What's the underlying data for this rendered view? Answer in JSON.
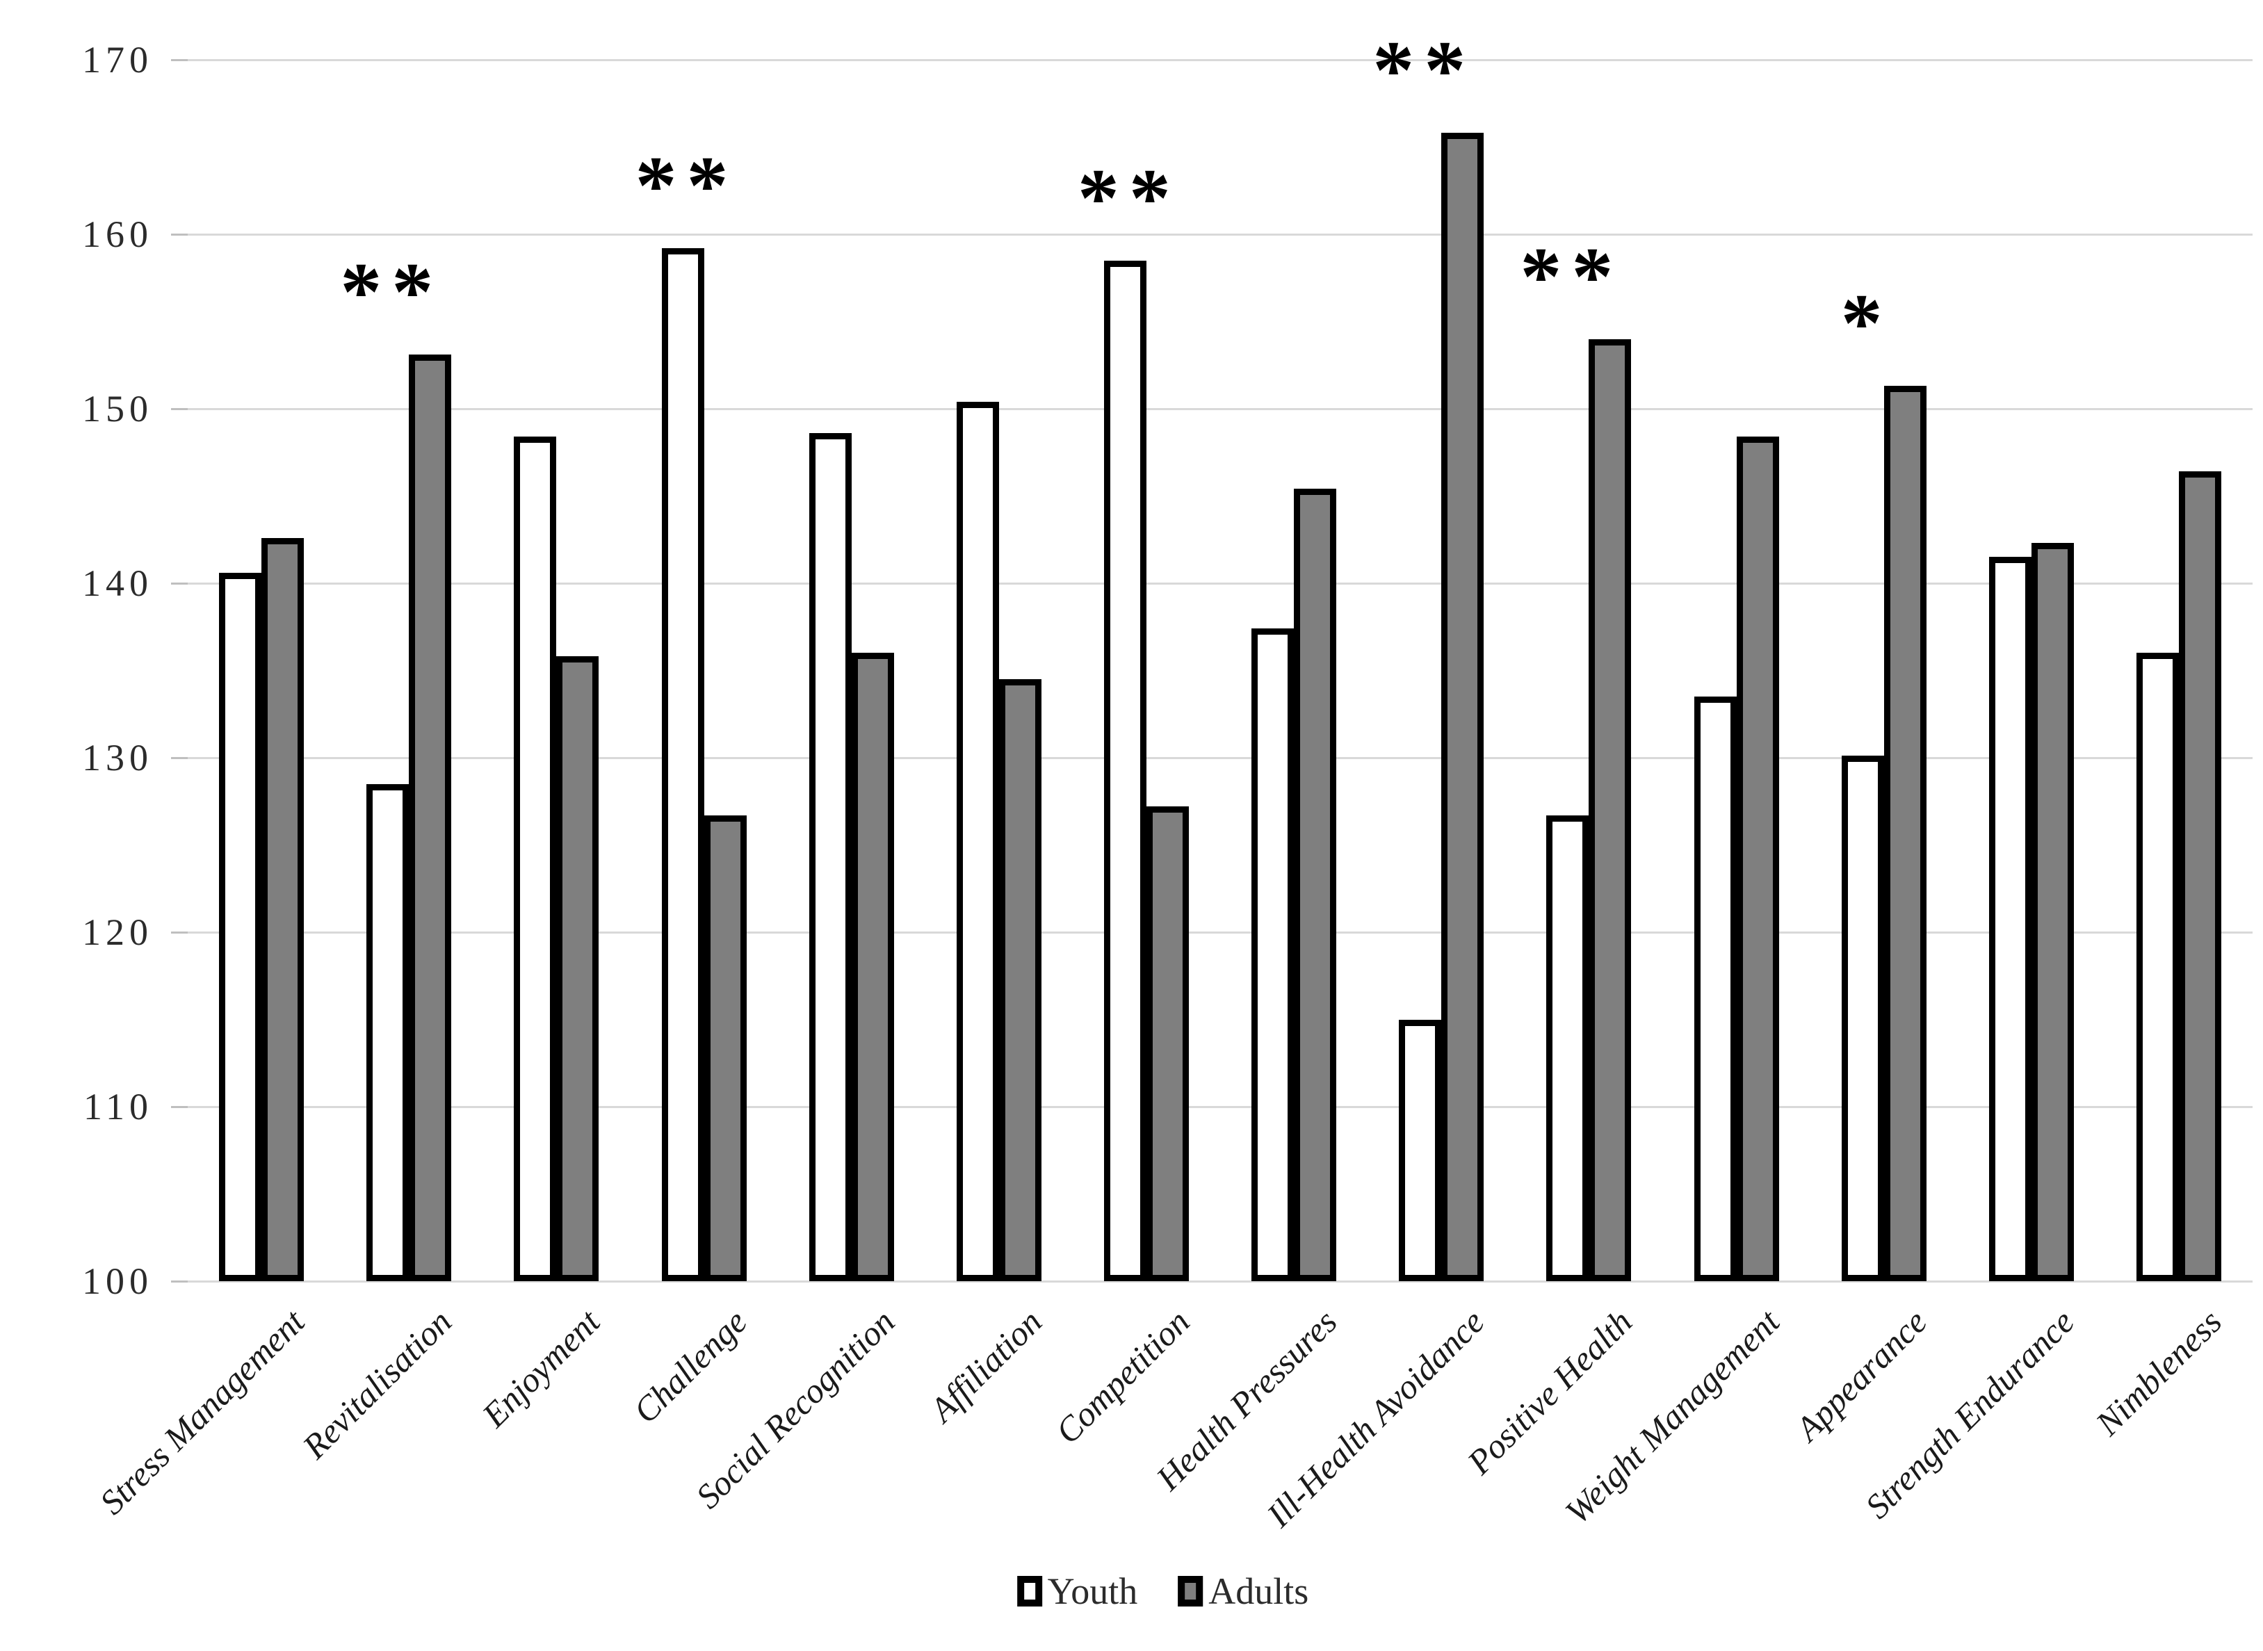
{
  "chart_data": {
    "type": "bar",
    "title": "",
    "xlabel": "",
    "ylabel": "",
    "ylim": [
      100,
      170
    ],
    "yticks": [
      100,
      110,
      120,
      130,
      140,
      150,
      160,
      170
    ],
    "grid": true,
    "legend_position": "bottom",
    "categories": [
      "Stress Management",
      "Revitalisation",
      "Enjoyment",
      "Challenge",
      "Social Recognition",
      "Affiliation",
      "Competition",
      "Health Pressures",
      "Ill-Health Avoidance",
      "Positive Health",
      "Weight Management",
      "Appearance",
      "Strength Endurance",
      "Nimbleness"
    ],
    "series": [
      {
        "name": "Youth",
        "fill": "#ffffff",
        "values": [
          140.6,
          128.5,
          148.4,
          159.2,
          148.6,
          150.4,
          158.5,
          137.4,
          115.0,
          126.7,
          133.5,
          130.1,
          141.5,
          136.0
        ]
      },
      {
        "name": "Adults",
        "fill": "#7f7f7f",
        "values": [
          142.6,
          153.1,
          135.8,
          126.7,
          136.0,
          134.5,
          127.2,
          145.4,
          165.8,
          154.0,
          148.4,
          151.3,
          142.3,
          146.4
        ]
      }
    ],
    "significance": [
      "",
      "**",
      "",
      "**",
      "",
      "",
      "**",
      "",
      "**",
      "**",
      "",
      "*",
      "",
      ""
    ],
    "colors": {
      "bar_outline": "#000000",
      "youth_fill": "#ffffff",
      "adults_fill": "#7f7f7f",
      "gridline": "#d9d9d9",
      "text": "#2b2b2b"
    }
  }
}
